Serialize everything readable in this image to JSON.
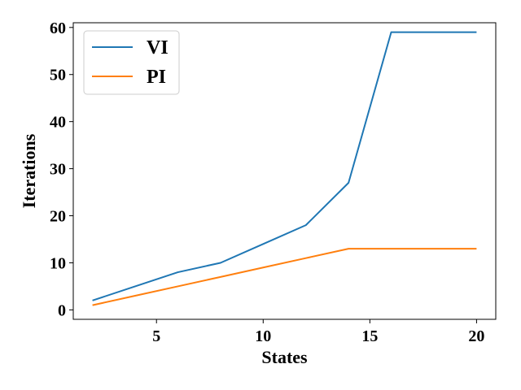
{
  "chart_data": {
    "type": "line",
    "xlabel": "States",
    "ylabel": "Iterations",
    "x": [
      2,
      4,
      6,
      8,
      10,
      12,
      14,
      16,
      18,
      20
    ],
    "series": [
      {
        "name": "VI",
        "color": "#1f77b4",
        "values": [
          2,
          5,
          8,
          10,
          14,
          18,
          27,
          59,
          59,
          59
        ]
      },
      {
        "name": "PI",
        "color": "#ff7f0e",
        "values": [
          1,
          3,
          5,
          7,
          9,
          11,
          13,
          13,
          13,
          13
        ]
      }
    ],
    "xlim": [
      1.1,
      20.9
    ],
    "ylim": [
      -2,
      61
    ],
    "xticks": [
      5,
      10,
      15,
      20
    ],
    "yticks": [
      0,
      10,
      20,
      30,
      40,
      50,
      60
    ],
    "grid": false,
    "legend_position": "top-left"
  }
}
